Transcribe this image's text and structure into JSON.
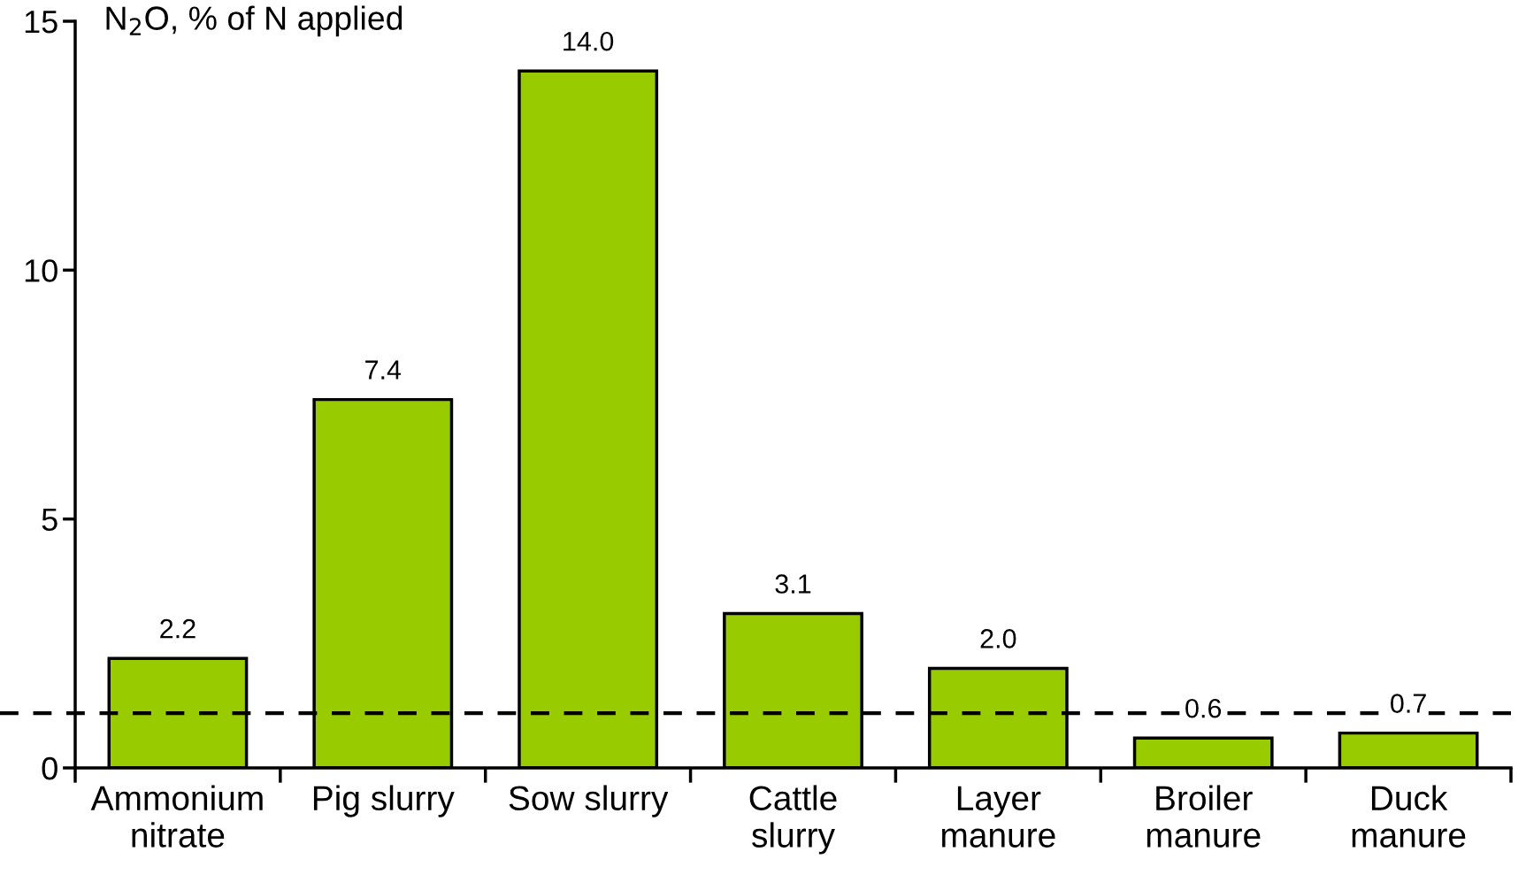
{
  "chart_data": {
    "type": "bar",
    "ylabel": "N$_{2}$O, % of N applied",
    "categories": [
      "Ammonium\nnitrate",
      "Pig slurry",
      "Sow slurry",
      "Cattle\nslurry",
      "Layer\nmanure",
      "Broiler\nmanure",
      "Duck\nmanure"
    ],
    "values": [
      2.2,
      7.4,
      14.0,
      3.1,
      2.0,
      0.6,
      0.7
    ],
    "value_labels": [
      "2.2",
      "7.4",
      "14.0",
      "3.1",
      "2.0",
      "0.6",
      "0.7"
    ],
    "color": "#99cc00",
    "ylim": [
      0,
      15
    ],
    "yticks": [
      0,
      5,
      10,
      15
    ],
    "grid": false,
    "legend": false,
    "ref_lines": [
      {
        "axis": "y",
        "value": 1.1,
        "color": "#000000",
        "line_style": "dashed"
      }
    ]
  }
}
